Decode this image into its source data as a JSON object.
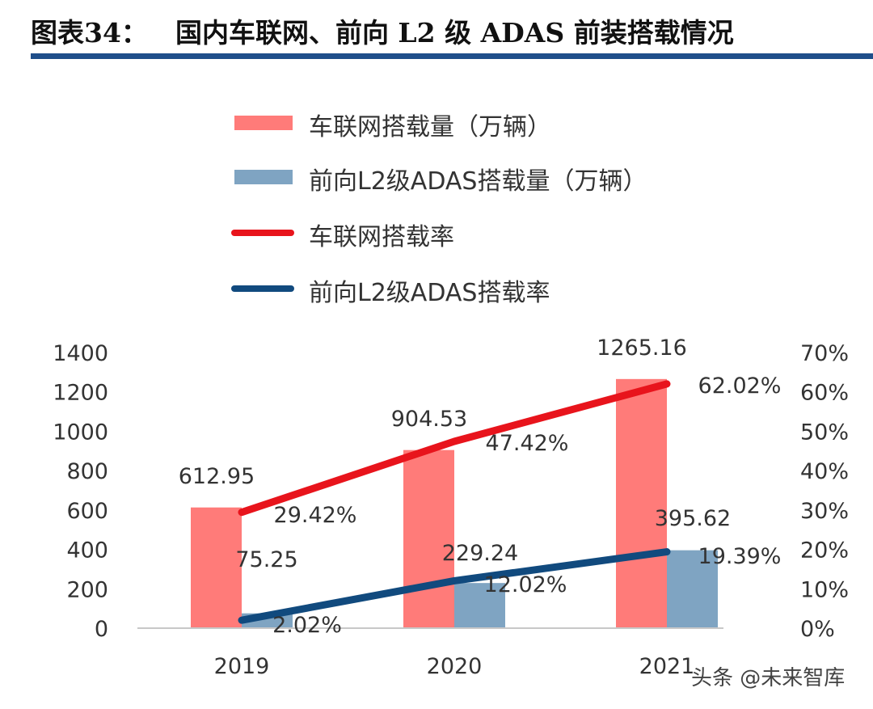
{
  "header": {
    "figure_label": "图表34：",
    "title": "国内车联网、前向 L2 级 ADAS 前装搭载情况"
  },
  "colors": {
    "title_rule": "#1f4e8a",
    "bar_connected": "#ff7b79",
    "bar_adas": "#7fa4c2",
    "line_connected": "#e8141c",
    "line_adas": "#114a7e",
    "axis": "#c8c8c8",
    "text": "#333333"
  },
  "legend": [
    {
      "label": "车联网搭载量（万辆）",
      "type": "bar",
      "color_key": "bar_connected"
    },
    {
      "label": "前向L2级ADAS搭载量（万辆）",
      "type": "bar",
      "color_key": "bar_adas"
    },
    {
      "label": "车联网搭载率",
      "type": "line",
      "color_key": "line_connected"
    },
    {
      "label": "前向L2级ADAS搭载率",
      "type": "line",
      "color_key": "line_adas"
    }
  ],
  "watermark": "头条 @未来智库",
  "chart_data": {
    "type": "bar",
    "combo": "bar+line (dual axis)",
    "title": "国内车联网、前向 L2 级 ADAS 前装搭载情况",
    "categories": [
      "2019",
      "2020",
      "2021"
    ],
    "series": [
      {
        "name": "车联网搭载量（万辆）",
        "type": "bar",
        "axis": "left",
        "values": [
          612.95,
          904.53,
          1265.16
        ],
        "labels": [
          "612.95",
          "904.53",
          "1265.16"
        ]
      },
      {
        "name": "前向L2级ADAS搭载量（万辆）",
        "type": "bar",
        "axis": "left",
        "values": [
          75.25,
          229.24,
          395.62
        ],
        "labels": [
          "75.25",
          "229.24",
          "395.62"
        ]
      },
      {
        "name": "车联网搭载率",
        "type": "line",
        "axis": "right",
        "values": [
          29.42,
          47.42,
          62.02
        ],
        "labels": [
          "29.42%",
          "47.42%",
          "62.02%"
        ]
      },
      {
        "name": "前向L2级ADAS搭载率",
        "type": "line",
        "axis": "right",
        "values": [
          2.02,
          12.02,
          19.39
        ],
        "labels": [
          "2.02%",
          "12.02%",
          "19.39%"
        ]
      }
    ],
    "y_left": {
      "range": [
        0,
        1400
      ],
      "ticks": [
        "0",
        "200",
        "400",
        "600",
        "800",
        "1000",
        "1200",
        "1400"
      ]
    },
    "y_right": {
      "range": [
        0,
        70
      ],
      "ticks": [
        "0%",
        "10%",
        "20%",
        "30%",
        "40%",
        "50%",
        "60%",
        "70%"
      ]
    },
    "xlabel": "",
    "ylabel": "",
    "grid": false,
    "legend_position": "top"
  }
}
